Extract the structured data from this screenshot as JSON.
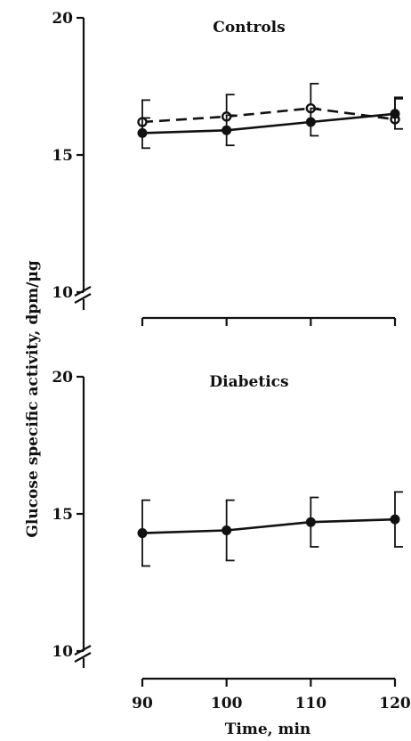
{
  "chart_data": {
    "ylabel": "Glucose specific activity, dpm/μg",
    "xlabel": "Time, min",
    "x_ticks": [
      90,
      100,
      110,
      120
    ],
    "panels": [
      {
        "title": "Controls",
        "type": "line",
        "x": [
          90,
          100,
          110,
          120
        ],
        "ylim": [
          10,
          20
        ],
        "y_ticks": [
          10,
          15,
          20
        ],
        "series": [
          {
            "style": "dashed",
            "marker": "open-circle",
            "values": [
              16.2,
              16.4,
              16.7,
              16.3
            ],
            "errors": [
              0.8,
              0.8,
              0.9,
              0.8
            ]
          },
          {
            "style": "solid",
            "marker": "filled-circle",
            "values": [
              15.8,
              15.9,
              16.2,
              16.5
            ],
            "errors": [
              0.55,
              0.55,
              0.5,
              0.55
            ]
          }
        ]
      },
      {
        "title": "Diabetics",
        "type": "line",
        "x": [
          90,
          100,
          110,
          120
        ],
        "ylim": [
          10,
          20
        ],
        "y_ticks": [
          10,
          15,
          20
        ],
        "series": [
          {
            "style": "solid",
            "marker": "filled-circle",
            "values": [
              14.3,
              14.4,
              14.7,
              14.8
            ],
            "errors": [
              1.2,
              1.1,
              0.9,
              1.0
            ]
          }
        ]
      }
    ]
  }
}
